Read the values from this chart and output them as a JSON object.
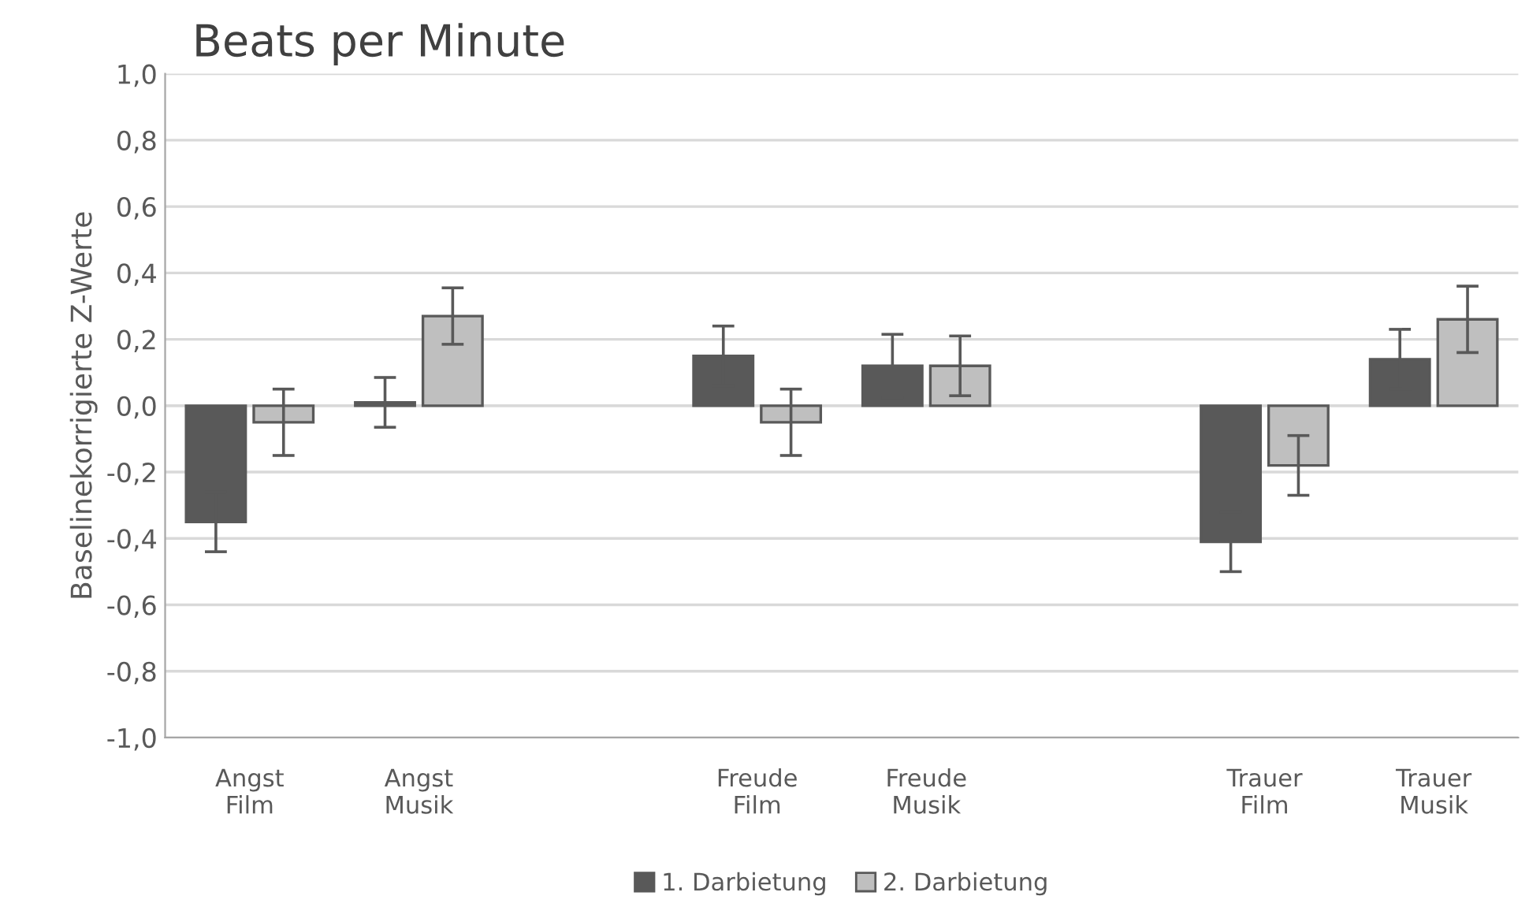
{
  "chart_data": {
    "type": "bar",
    "title": "Beats per Minute",
    "ylabel": "Baselinekorrigierte Z-Werte",
    "categories": [
      "Angst\nFilm",
      "Angst\nMusik",
      null,
      "Freude\nFilm",
      "Freude\nMusik",
      null,
      "Trauer\nFilm",
      "Trauer\nMusik"
    ],
    "series": [
      {
        "name": "1. Darbietung",
        "color": "#595959",
        "values": [
          -0.35,
          0.01,
          null,
          0.15,
          0.12,
          null,
          -0.41,
          0.14
        ],
        "errors": [
          0.09,
          0.075,
          null,
          0.09,
          0.095,
          null,
          0.09,
          0.09
        ]
      },
      {
        "name": "2. Darbietung",
        "color": "#bfbfbf",
        "values": [
          -0.05,
          0.27,
          null,
          -0.05,
          0.12,
          null,
          -0.18,
          0.26
        ],
        "errors": [
          0.1,
          0.085,
          null,
          0.1,
          0.09,
          null,
          0.09,
          0.1
        ]
      }
    ],
    "ylim": [
      -1.0,
      1.0
    ],
    "yticks": [
      {
        "value": -1.0,
        "label": "-1,0"
      },
      {
        "value": -0.8,
        "label": "-0,8"
      },
      {
        "value": -0.6,
        "label": "-0,6"
      },
      {
        "value": -0.4,
        "label": "-0,4"
      },
      {
        "value": -0.2,
        "label": "-0,2"
      },
      {
        "value": 0.0,
        "label": "0,0"
      },
      {
        "value": 0.2,
        "label": "0,2"
      },
      {
        "value": 0.4,
        "label": "0,4"
      },
      {
        "value": 0.6,
        "label": "0,6"
      },
      {
        "value": 0.8,
        "label": "0,8"
      },
      {
        "value": 1.0,
        "label": "1,0"
      }
    ],
    "grid": "y",
    "legend": "bottom"
  }
}
